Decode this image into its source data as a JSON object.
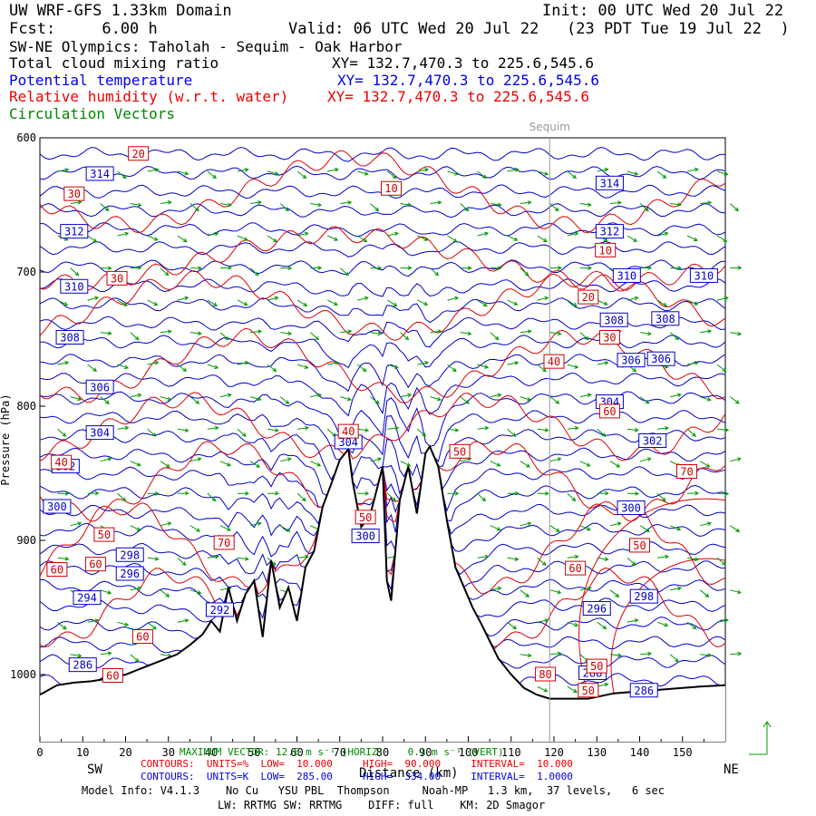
{
  "header": {
    "title": "UW WRF-GFS 1.33km Domain",
    "init": "Init: 00 UTC Wed 20 Jul 22",
    "fcst": "Fcst:     6.00 h",
    "valid": "Valid: 06 UTC Wed 20 Jul 22   (23 PDT Tue 19 Jul 22  )",
    "section": "SW-NE Olympics: Taholah - Sequim - Oak Harbor"
  },
  "fields": [
    {
      "label": "Total cloud mixing ratio",
      "xy": "XY= 132.7,470.3 to 225.6,545.6",
      "color": "#000000"
    },
    {
      "label": "Potential temperature",
      "xy": "XY= 132.7,470.3 to 225.6,545.6",
      "color": "#0000ee"
    },
    {
      "label": "Relative humidity (w.r.t. water)",
      "xy": "XY= 132.7,470.3 to 225.6,545.6",
      "color": "#ee0000"
    },
    {
      "label": "Circulation Vectors",
      "xy": "",
      "color": "#008800"
    }
  ],
  "chart_data": {
    "type": "cross-section",
    "xlabel": "Distance (km)",
    "ylabel": "Pressure (hPa)",
    "xlim": [
      0,
      160
    ],
    "ylim": [
      1050,
      600
    ],
    "x_ticks": [
      "0",
      "10",
      "20",
      "30",
      "40",
      "50",
      "60",
      "70",
      "80",
      "90",
      "100",
      "110",
      "120",
      "130",
      "140",
      "150"
    ],
    "y_ticks": [
      "600",
      "700",
      "800",
      "900",
      "1000"
    ],
    "marker": {
      "label": "Sequim",
      "x": 119
    },
    "terrain": {
      "x": [
        0,
        4,
        8,
        12,
        16,
        20,
        24,
        28,
        32,
        35,
        38,
        40,
        42,
        44,
        46,
        48,
        50,
        52,
        54,
        56,
        58,
        60,
        62,
        64,
        66,
        68,
        70,
        72,
        73,
        75,
        77,
        78,
        80,
        81,
        82,
        84,
        86,
        88,
        90,
        91,
        93,
        95,
        97,
        99,
        101,
        103,
        105,
        107,
        110,
        113,
        116,
        119,
        122,
        125,
        128,
        131,
        134,
        138,
        142,
        146,
        150,
        154,
        160
      ],
      "p": [
        1015,
        1008,
        1006,
        1005,
        1003,
        1000,
        995,
        990,
        985,
        978,
        970,
        960,
        968,
        935,
        960,
        940,
        930,
        972,
        915,
        950,
        935,
        960,
        920,
        908,
        875,
        858,
        840,
        832,
        856,
        890,
        882,
        870,
        845,
        930,
        945,
        870,
        845,
        880,
        835,
        830,
        845,
        885,
        920,
        935,
        950,
        962,
        975,
        988,
        1000,
        1010,
        1015,
        1018,
        1018,
        1018,
        1018,
        1016,
        1014,
        1013,
        1012,
        1011,
        1010,
        1009,
        1008
      ]
    },
    "theta_labels": [
      {
        "v": "314",
        "x": 14,
        "p": 627
      },
      {
        "v": "314",
        "x": 133,
        "p": 634
      },
      {
        "v": "312",
        "x": 8,
        "p": 670
      },
      {
        "v": "312",
        "x": 133,
        "p": 670
      },
      {
        "v": "310",
        "x": 8,
        "p": 711
      },
      {
        "v": "310",
        "x": 137,
        "p": 703
      },
      {
        "v": "310",
        "x": 155,
        "p": 703
      },
      {
        "v": "308",
        "x": 146,
        "p": 735
      },
      {
        "v": "308",
        "x": 134,
        "p": 736
      },
      {
        "v": "308",
        "x": 7,
        "p": 749
      },
      {
        "v": "306",
        "x": 145,
        "p": 765
      },
      {
        "v": "306",
        "x": 138,
        "p": 766
      },
      {
        "v": "306",
        "x": 14,
        "p": 786
      },
      {
        "v": "304",
        "x": 133,
        "p": 797
      },
      {
        "v": "304",
        "x": 14,
        "p": 820
      },
      {
        "v": "304",
        "x": 72,
        "p": 827
      },
      {
        "v": "302",
        "x": 143,
        "p": 826
      },
      {
        "v": "302",
        "x": 6,
        "p": 845
      },
      {
        "v": "300",
        "x": 4,
        "p": 875
      },
      {
        "v": "300",
        "x": 138,
        "p": 876
      },
      {
        "v": "300",
        "x": 76,
        "p": 897
      },
      {
        "v": "298",
        "x": 21,
        "p": 911
      },
      {
        "v": "298",
        "x": 141,
        "p": 942
      },
      {
        "v": "296",
        "x": 21,
        "p": 925
      },
      {
        "v": "296",
        "x": 130,
        "p": 951
      },
      {
        "v": "294",
        "x": 11,
        "p": 943
      },
      {
        "v": "292",
        "x": 42,
        "p": 952
      },
      {
        "v": "286",
        "x": 10,
        "p": 993
      },
      {
        "v": "286",
        "x": 141,
        "p": 1012
      },
      {
        "v": "288",
        "x": 129,
        "p": 999
      }
    ],
    "rh_labels": [
      {
        "v": "20",
        "x": 23,
        "p": 612
      },
      {
        "v": "30",
        "x": 8,
        "p": 642
      },
      {
        "v": "10",
        "x": 82,
        "p": 638
      },
      {
        "v": "30",
        "x": 18,
        "p": 705
      },
      {
        "v": "10",
        "x": 132,
        "p": 684
      },
      {
        "v": "20",
        "x": 128,
        "p": 719
      },
      {
        "v": "30",
        "x": 133,
        "p": 749
      },
      {
        "v": "40",
        "x": 120,
        "p": 767
      },
      {
        "v": "60",
        "x": 133,
        "p": 804
      },
      {
        "v": "40",
        "x": 72,
        "p": 819
      },
      {
        "v": "50",
        "x": 98,
        "p": 834
      },
      {
        "v": "40",
        "x": 5,
        "p": 842
      },
      {
        "v": "70",
        "x": 151,
        "p": 849
      },
      {
        "v": "50",
        "x": 76,
        "p": 883
      },
      {
        "v": "50",
        "x": 15,
        "p": 896
      },
      {
        "v": "70",
        "x": 43,
        "p": 902
      },
      {
        "v": "50",
        "x": 140,
        "p": 904
      },
      {
        "v": "60",
        "x": 13,
        "p": 918
      },
      {
        "v": "60",
        "x": 4,
        "p": 922
      },
      {
        "v": "60",
        "x": 125,
        "p": 921
      },
      {
        "v": "60",
        "x": 24,
        "p": 972
      },
      {
        "v": "60",
        "x": 17,
        "p": 1001
      },
      {
        "v": "80",
        "x": 118,
        "p": 1000
      },
      {
        "v": "50",
        "x": 130,
        "p": 994
      },
      {
        "v": "50",
        "x": 128,
        "p": 1012
      }
    ]
  },
  "footer": {
    "sw": "SW",
    "ne": "NE",
    "max_vector": "MAXIMUM VECTOR: 12.6 m s⁻¹ (HORIZ)    0.1 m s⁻¹ (VERT)",
    "red_line": "CONTOURS:  UNITS=%  LOW=  10.000     HIGH=  90.000     INTERVAL=  10.000",
    "blue_line": "CONTOURS:  UNITS=K  LOW=  285.00     HIGH=  334.00     INTERVAL=  1.0000",
    "model1": "Model Info: V4.1.3    No Cu   YSU PBL  Thompson     Noah-MP   1.3 km,  37 levels,   6 sec",
    "model2": "LW: RRTMG SW: RRTMG    DIFF: full    KM: 2D Smagor"
  }
}
